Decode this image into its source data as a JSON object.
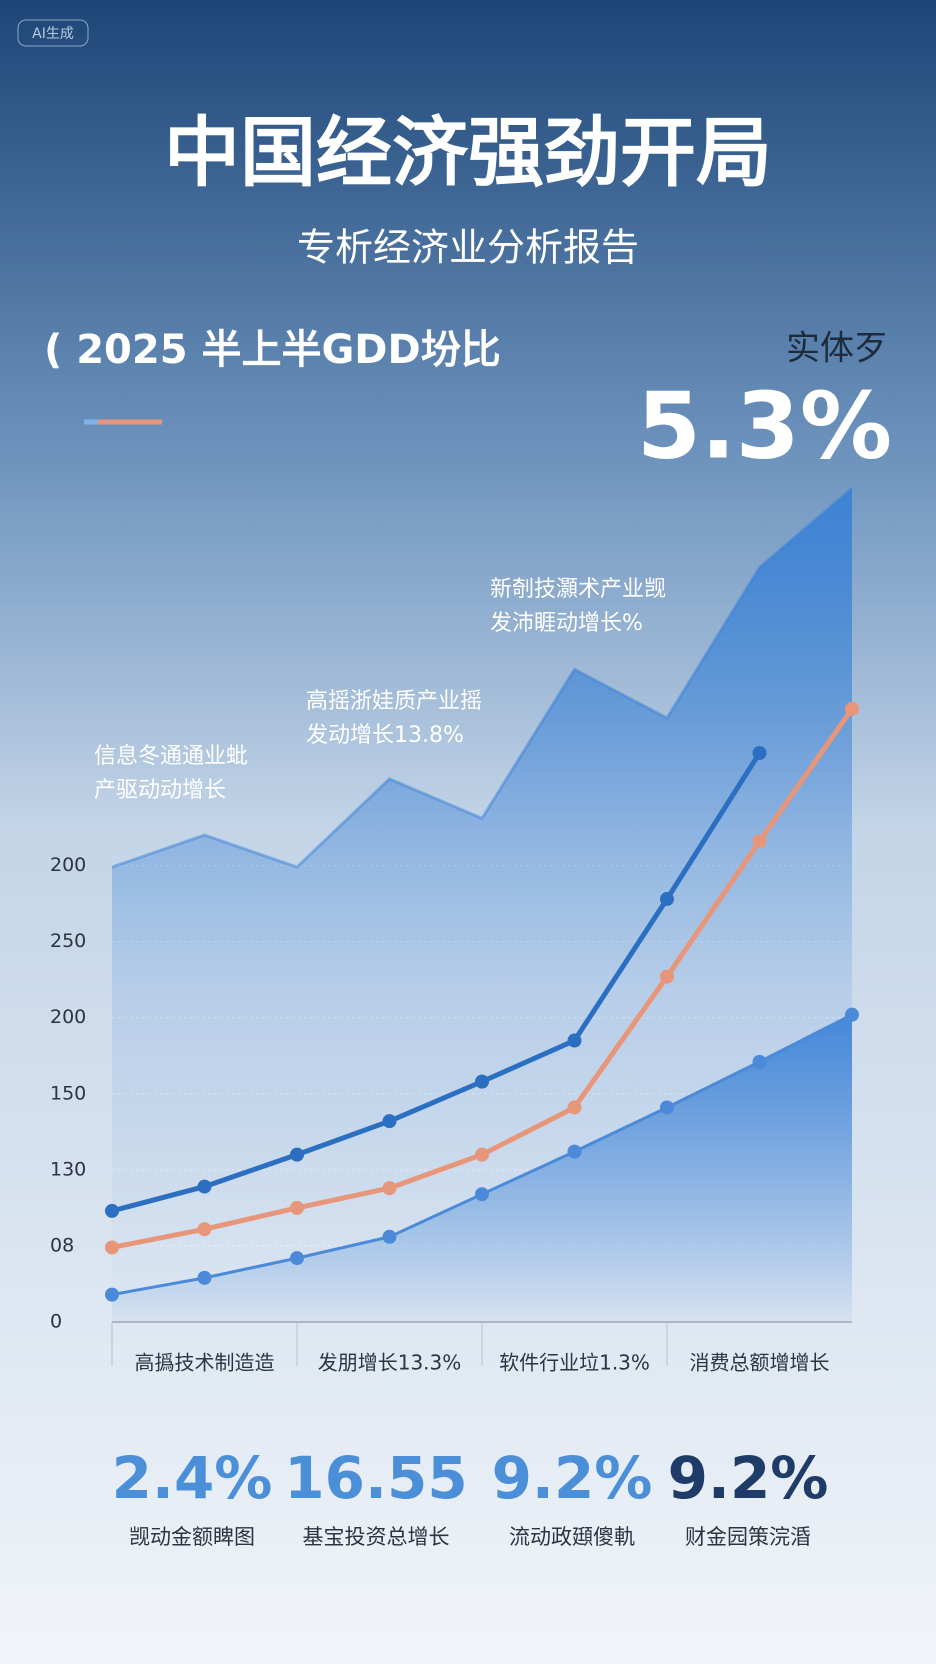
{
  "badge": "AI生成",
  "headline": {
    "title": "中国经济强劲开局",
    "subtitle": "专析经济业分析报告",
    "section": "( 2025 半上半GDD坋比",
    "kicker": "实体歹",
    "figure": "5.3%"
  },
  "chart_data": {
    "type": "line",
    "categories": [
      null,
      "高撝技术制造造",
      null,
      "发朋增长13.3%",
      null,
      "软件行业垃1.3%",
      null,
      "消费总额增增长",
      null
    ],
    "ylim": [
      0,
      560
    ],
    "yticks": [
      0,
      {
        "value": 50,
        "label": "08"
      },
      {
        "value": 100,
        "label": "130"
      },
      150,
      200,
      250,
      {
        "value": 300,
        "label": "200"
      }
    ],
    "grid": true,
    "annotations": [
      [
        "信息冬通通业蚍",
        "产驱动动增长"
      ],
      [
        "高摇浙娃质产业摇",
        "发动增长13.8%"
      ],
      [
        "新剞技灝术产业觊",
        "发沛睚动增长%"
      ]
    ],
    "series": [
      {
        "kind": "area",
        "color": "#3b82d6",
        "values": [
          299,
          320,
          299,
          357,
          331,
          429,
          397,
          496,
          548
        ]
      },
      {
        "kind": "area",
        "color": "#4a8ad8",
        "values": [
          18,
          29,
          42,
          56,
          84,
          112,
          141,
          171,
          202
        ]
      },
      {
        "kind": "line",
        "color": "#2a6fc2",
        "values": [
          73,
          89,
          110,
          132,
          158,
          185,
          278,
          374,
          null
        ]
      },
      {
        "kind": "line",
        "color": "#e8967a",
        "values": [
          49,
          61,
          75,
          88,
          110,
          141,
          227,
          316,
          403
        ]
      }
    ]
  },
  "stats": [
    {
      "value": "2.4%",
      "label": "觊动金额睥图"
    },
    {
      "value": "16.55",
      "label": "基宝投资总增长"
    },
    {
      "value": "9.2%",
      "label": "流动政頲傻軌"
    },
    {
      "value": "9.2%",
      "label": "财金园策浣涽"
    }
  ]
}
